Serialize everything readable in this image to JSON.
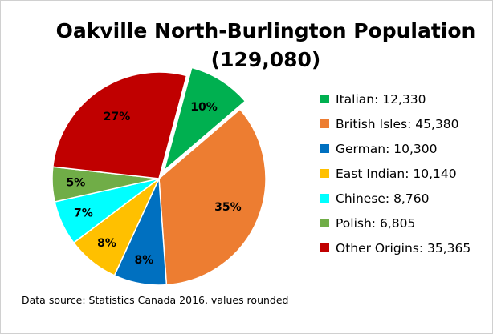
{
  "chart_data": {
    "type": "pie",
    "title": "Oakville North-Burlington Population",
    "subtitle": "(129,080)",
    "source": "Data source: Statistics Canada 2016, values rounded",
    "categories": [
      "Italian",
      "British Isles",
      "German",
      "East Indian",
      "Chinese",
      "Polish",
      "Other Origins"
    ],
    "values": [
      12330,
      45380,
      10300,
      10140,
      8760,
      6805,
      35365
    ],
    "percent_labels": [
      "10%",
      "35%",
      "8%",
      "8%",
      "7%",
      "5%",
      "27%"
    ],
    "legend_entries": [
      "Italian: 12,330",
      "British Isles: 45,380",
      "German: 10,300",
      "East Indian: 10,140",
      "Chinese: 8,760",
      "Polish: 6,805",
      "Other Origins: 35,365"
    ],
    "colors": [
      "#00b050",
      "#ed7d31",
      "#0070c0",
      "#ffc000",
      "#00ffff",
      "#70ad47",
      "#c00000"
    ],
    "exploded": [
      "Italian"
    ],
    "legend_position": "right"
  }
}
